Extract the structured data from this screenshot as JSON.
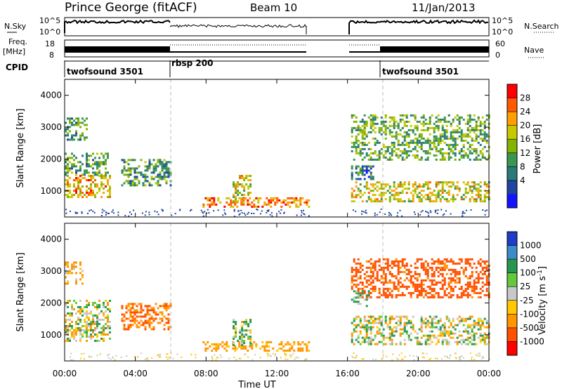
{
  "header": {
    "station": "Prince George (fitACF)",
    "beam": "Beam 10",
    "date": "11/Jan/2013"
  },
  "top_panels": {
    "nsky_label": "N.Sky",
    "nsearch_label": "N.Search",
    "nsky_ticks": [
      "10^5",
      "10^0"
    ],
    "nsearch_ticks": [
      "10^5",
      "10^0"
    ],
    "freq_label": "Freq.",
    "freq_unit": "[MHz]",
    "freq_ticks": [
      "18",
      "8"
    ],
    "nave_label": "Nave",
    "nave_ticks": [
      "60",
      "0"
    ],
    "cpid_label": "CPID",
    "cpid_segments": [
      {
        "label": "twofsound 3501",
        "start_hr": 0
      },
      {
        "label": "rbsp 200",
        "start_hr": 6
      },
      {
        "label": "twofsound 3501",
        "start_hr": 18
      }
    ]
  },
  "chart_data": [
    {
      "type": "heatmap",
      "title": "Power",
      "ylabel": "Slant Range [km]",
      "xlabel": "",
      "colorbar_label": "Power [dB]",
      "colorbar_ticks": [
        "28",
        "24",
        "20",
        "16",
        "12",
        "8",
        "4"
      ],
      "colorbar_colors": [
        "#ff0000",
        "#ff5a00",
        "#ffa000",
        "#c8c800",
        "#82b400",
        "#3c9650",
        "#2a7a78",
        "#1e46a0",
        "#1414ff"
      ],
      "ylim": [
        180,
        4500
      ],
      "xlim_hr": [
        0,
        24
      ],
      "yticks": [
        "1000",
        "2000",
        "3000",
        "4000"
      ],
      "data_gap_hr": [
        13.8,
        16.2
      ],
      "regions": [
        {
          "t0": 0.0,
          "t1": 2.6,
          "r0": 800,
          "r1": 1500,
          "value": 22
        },
        {
          "t0": 0.0,
          "t1": 2.5,
          "r0": 1500,
          "r1": 2200,
          "value": 12
        },
        {
          "t0": 0.0,
          "t1": 1.2,
          "r0": 2600,
          "r1": 3300,
          "value": 10
        },
        {
          "t0": 3.2,
          "t1": 6.0,
          "r0": 1200,
          "r1": 2000,
          "value": 11
        },
        {
          "t0": 7.8,
          "t1": 13.8,
          "r0": 500,
          "r1": 800,
          "value": 24
        },
        {
          "t0": 9.5,
          "t1": 10.5,
          "r0": 700,
          "r1": 1500,
          "value": 18
        },
        {
          "t0": 16.2,
          "t1": 24.0,
          "r0": 700,
          "r1": 1300,
          "value": 18
        },
        {
          "t0": 16.2,
          "t1": 24.0,
          "r0": 2000,
          "r1": 3400,
          "value": 13
        },
        {
          "t0": 16.2,
          "t1": 17.5,
          "r0": 1400,
          "r1": 1800,
          "value": 8
        }
      ]
    },
    {
      "type": "heatmap",
      "title": "Velocity",
      "ylabel": "Slant Range [km]",
      "xlabel": "Time UT",
      "colorbar_label": "Velocity [m s^-1]",
      "colorbar_ticks": [
        "1000",
        "500",
        "100",
        "25",
        "-25",
        "-100",
        "-500",
        "-1000"
      ],
      "colorbar_colors": [
        "#1e3cc8",
        "#3c8cc8",
        "#289650",
        "#64c83c",
        "#c8c8c8",
        "#ffc800",
        "#ff9600",
        "#ff5000",
        "#ff0000"
      ],
      "ylim": [
        180,
        4500
      ],
      "xlim_hr": [
        0,
        24
      ],
      "xticks": [
        "00:00",
        "04:00",
        "08:00",
        "12:00",
        "16:00",
        "20:00",
        "00:00"
      ],
      "yticks": [
        "1000",
        "2000",
        "3000",
        "4000"
      ],
      "data_gap_hr": [
        13.8,
        16.2
      ],
      "regions": [
        {
          "t0": 0.0,
          "t1": 2.6,
          "r0": 800,
          "r1": 2100,
          "value": 0
        },
        {
          "t0": 0.0,
          "t1": 1.0,
          "r0": 2600,
          "r1": 3300,
          "value": -100
        },
        {
          "t0": 3.2,
          "t1": 6.0,
          "r0": 1200,
          "r1": 2000,
          "value": -300
        },
        {
          "t0": 7.8,
          "t1": 13.8,
          "r0": 500,
          "r1": 800,
          "value": -150
        },
        {
          "t0": 9.5,
          "t1": 10.5,
          "r0": 700,
          "r1": 1500,
          "value": 50
        },
        {
          "t0": 16.2,
          "t1": 24.0,
          "r0": 700,
          "r1": 1600,
          "value": 0
        },
        {
          "t0": 16.2,
          "t1": 24.0,
          "r0": 2200,
          "r1": 3400,
          "value": -400
        },
        {
          "t0": 16.2,
          "t1": 17.2,
          "r0": 1900,
          "r1": 2400,
          "value": 100
        }
      ]
    }
  ]
}
